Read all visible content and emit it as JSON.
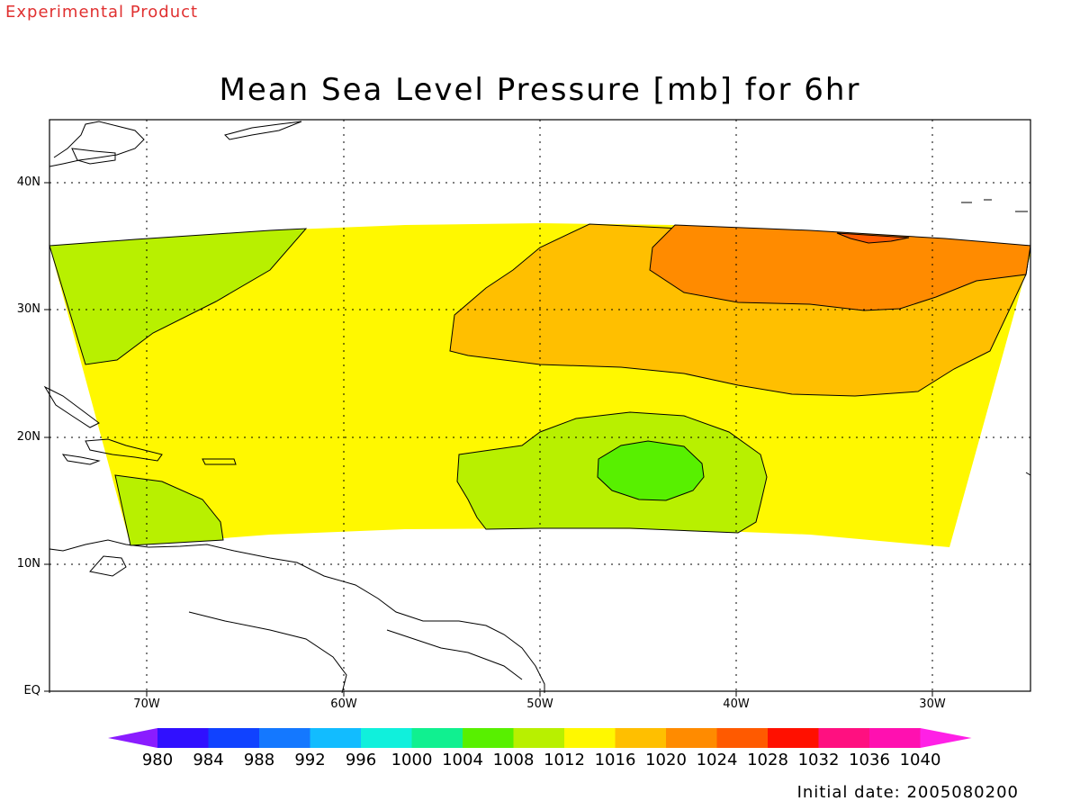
{
  "header": {
    "experimental_label": "Experimental Product",
    "title": "Mean Sea Level Pressure [mb] for 6hr"
  },
  "map": {
    "lat_labels": [
      "40N",
      "30N",
      "20N",
      "10N",
      "EQ"
    ],
    "lon_labels": [
      "70W",
      "60W",
      "50W",
      "40W",
      "30W"
    ],
    "colors": {
      "band_1008": "#b8f000",
      "band_1012": "#fff800",
      "band_1016": "#ffbf00",
      "band_1020": "#ff8b00",
      "band_1024": "#ff5a00",
      "band_1004": "#58f000"
    }
  },
  "colorbar": {
    "labels": [
      "980",
      "984",
      "988",
      "992",
      "996",
      "1000",
      "1004",
      "1008",
      "1012",
      "1016",
      "1020",
      "1024",
      "1028",
      "1032",
      "1036",
      "1040"
    ],
    "colors": [
      "#8a1cff",
      "#3010ff",
      "#1042ff",
      "#1478ff",
      "#12bcff",
      "#10f0dc",
      "#10f090",
      "#58f000",
      "#b8f000",
      "#fff800",
      "#ffbf00",
      "#ff8b00",
      "#ff5a00",
      "#ff1000",
      "#ff1080",
      "#ff10b0",
      "#ff20e6"
    ]
  },
  "footer": {
    "initial_date": "Initial date: 2005080200"
  }
}
